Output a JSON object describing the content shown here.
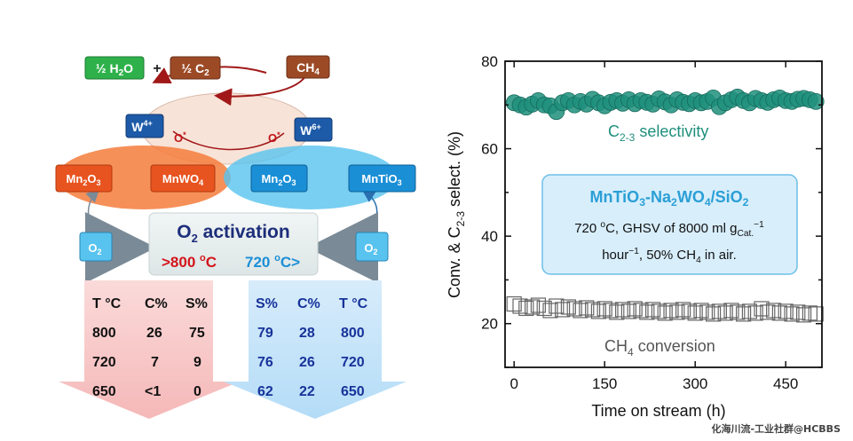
{
  "scheme": {
    "product_h2o": {
      "pre": "½ H",
      "sub": "2",
      "post": "O"
    },
    "plus": "+",
    "product_c2": {
      "pre": "½ C",
      "sub": "2",
      "post": ""
    },
    "reactant_ch4": {
      "pre": "CH",
      "sub": "4",
      "post": ""
    },
    "w4": {
      "pre": "W",
      "sup": "4+"
    },
    "w6": {
      "pre": "W",
      "sup": "6+"
    },
    "oxy_left": {
      "pre": "O",
      "sup": "*"
    },
    "oxy_right": {
      "pre": "O",
      "sup": "*"
    },
    "mn2o3_left": {
      "a": "Mn",
      "s1": "2",
      "b": "O",
      "s2": "3"
    },
    "mnwo4": {
      "a": "MnWO",
      "s1": "4"
    },
    "mn2o3_right": {
      "a": "Mn",
      "s1": "2",
      "b": "O",
      "s2": "3"
    },
    "mntio3": {
      "a": "MnTiO",
      "s1": "3"
    },
    "activation": {
      "a": "O",
      "s1": "2",
      "b": " activation"
    },
    "temp_left": {
      "pre": ">800 ",
      "sup": "o",
      "post": "C"
    },
    "temp_right": {
      "pre": "720 ",
      "sup": "o",
      "post": "C>"
    },
    "o2_left": {
      "a": "O",
      "s1": "2"
    },
    "o2_right": {
      "a": "O",
      "s1": "2"
    },
    "table_left": {
      "headers": [
        "T °C",
        "C%",
        "S%"
      ],
      "rows": [
        [
          "800",
          "26",
          "75"
        ],
        [
          "720",
          "7",
          "9"
        ],
        [
          "650",
          "<1",
          "0"
        ]
      ]
    },
    "table_right": {
      "headers": [
        "S%",
        "C%",
        "T °C"
      ],
      "rows": [
        [
          "79",
          "28",
          "800"
        ],
        [
          "76",
          "26",
          "720"
        ],
        [
          "62",
          "22",
          "650"
        ]
      ]
    }
  },
  "chart_data": {
    "type": "scatter",
    "xlabel": "Time on stream (h)",
    "ylabel_parts": {
      "pre": "Conv. & C",
      "sub": "2-3",
      "post": " select. (%)"
    },
    "xlim": [
      -15,
      510
    ],
    "ylim": [
      10,
      80
    ],
    "xticks": [
      0,
      150,
      300,
      450
    ],
    "yticks": [
      20,
      40,
      60,
      80
    ],
    "colors": {
      "selectivity": "#1f8f7c",
      "conversion": "#666666",
      "catalyst": "#2a9fd6"
    },
    "series": [
      {
        "name": "C2-3 selectivity",
        "label_parts": {
          "pre": "C",
          "sub": "2-3",
          "post": " selectivity"
        },
        "marker": "circle-filled",
        "x": [
          0,
          10,
          20,
          30,
          40,
          50,
          60,
          70,
          80,
          90,
          100,
          110,
          120,
          130,
          140,
          150,
          160,
          170,
          180,
          190,
          200,
          210,
          220,
          230,
          240,
          250,
          260,
          270,
          280,
          290,
          300,
          310,
          320,
          330,
          340,
          350,
          360,
          370,
          380,
          390,
          400,
          410,
          420,
          430,
          440,
          450,
          460,
          470,
          480,
          490,
          500
        ],
        "y": [
          70.5,
          70,
          69.5,
          70.2,
          71,
          70,
          69.8,
          68.5,
          70.5,
          71,
          70,
          70.8,
          70.2,
          71.3,
          70.5,
          69.8,
          70.6,
          71,
          70.4,
          71.2,
          70.3,
          71,
          70.6,
          70.2,
          71.4,
          70.7,
          70,
          71.2,
          70.6,
          70.3,
          71,
          70.5,
          70.8,
          71.6,
          69.6,
          70.5,
          71.2,
          71.8,
          71,
          70.5,
          71.5,
          71,
          70.6,
          71.2,
          71.6,
          71,
          70.8,
          71.3,
          71.5,
          71.2,
          70.8
        ]
      },
      {
        "name": "CH4 conversion",
        "label_parts": {
          "pre": "CH",
          "sub": "4",
          "post": " conversion"
        },
        "marker": "square-open",
        "x": [
          0,
          10,
          20,
          30,
          40,
          50,
          60,
          70,
          80,
          90,
          100,
          110,
          120,
          130,
          140,
          150,
          160,
          170,
          180,
          190,
          200,
          210,
          220,
          230,
          240,
          250,
          260,
          270,
          280,
          290,
          300,
          310,
          320,
          330,
          340,
          350,
          360,
          370,
          380,
          390,
          400,
          410,
          420,
          430,
          440,
          450,
          460,
          470,
          480,
          490,
          500
        ],
        "y": [
          24.5,
          24,
          23.5,
          23.8,
          24.2,
          23.5,
          23,
          24,
          23.2,
          23.8,
          23.4,
          23,
          23.6,
          23.2,
          22.8,
          23.4,
          23,
          22.6,
          23.2,
          22.8,
          23.4,
          23,
          22.6,
          23.2,
          22.8,
          22.4,
          23,
          22.6,
          23.2,
          22.8,
          22.4,
          23,
          22.6,
          22.2,
          22.8,
          22.4,
          23,
          22.6,
          22.2,
          22.8,
          22.4,
          23.4,
          22.6,
          23,
          22.4,
          22.8,
          22.2,
          22.6,
          22,
          22.4,
          22.2
        ]
      }
    ],
    "annotation": {
      "line1_parts": [
        {
          "t": "MnTiO"
        },
        {
          "t": "3",
          "s": "sub"
        },
        {
          "t": "-Na"
        },
        {
          "t": "2",
          "s": "sub"
        },
        {
          "t": "WO"
        },
        {
          "t": "4",
          "s": "sub"
        },
        {
          "t": "/SiO"
        },
        {
          "t": "2",
          "s": "sub"
        }
      ],
      "line2_parts": [
        {
          "t": "720 "
        },
        {
          "t": "o",
          "s": "sup"
        },
        {
          "t": "C, GHSV of 8000 ml g"
        },
        {
          "t": "Cat.",
          "s": "sub"
        },
        {
          "t": "−1",
          "s": "sup"
        }
      ],
      "line3_parts": [
        {
          "t": "hour"
        },
        {
          "t": "−1",
          "s": "sup"
        },
        {
          "t": ", 50% CH"
        },
        {
          "t": "4",
          "s": "sub"
        },
        {
          "t": " in air."
        }
      ]
    }
  },
  "watermark": "化海川流-工业社群@HCBBS"
}
